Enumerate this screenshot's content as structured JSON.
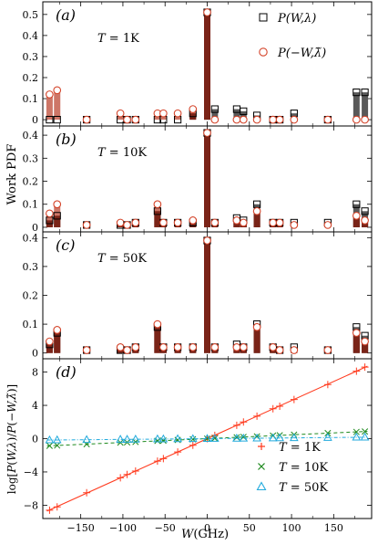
{
  "figure": {
    "ylabel_top": "Work PDF",
    "ylabel_d": "log[P(W,λ)/P(−W,λ̃)]",
    "xlabel": "W(GHz)"
  },
  "chart_data": [
    {
      "type": "bar",
      "panel": "(a)",
      "annotation": "T = 1K",
      "legend": {
        "placement": "top-right",
        "entries": [
          "P(W,λ)",
          "P(−W,λ̃)"
        ]
      },
      "xlim": [
        -195,
        195
      ],
      "ylim": [
        -0.03,
        0.56
      ],
      "yticks": [
        0,
        0.1,
        0.2,
        0.3,
        0.4,
        0.5
      ],
      "x": [
        -187,
        -178,
        -143,
        -103,
        -95,
        -85,
        -59,
        -52,
        -35,
        -17,
        0,
        9,
        35,
        43,
        59,
        78,
        86,
        103,
        143,
        177,
        187
      ],
      "P_forward": [
        0.0,
        0.0,
        0.0,
        0.0,
        0.0,
        0.0,
        0.0,
        0.0,
        0.0,
        0.03,
        0.51,
        0.05,
        0.05,
        0.04,
        0.02,
        0.0,
        0.0,
        0.03,
        0.0,
        0.13,
        0.13
      ],
      "P_reverse": [
        0.12,
        0.14,
        0.0,
        0.03,
        0.0,
        0.0,
        0.03,
        0.03,
        0.03,
        0.05,
        0.51,
        0.0,
        0.0,
        0.0,
        0.0,
        0.0,
        0.0,
        0.0,
        0.0,
        0.0,
        0.0
      ]
    },
    {
      "type": "bar",
      "panel": "(b)",
      "annotation": "T = 10K",
      "xlim": [
        -195,
        195
      ],
      "ylim": [
        -0.02,
        0.44
      ],
      "yticks": [
        0,
        0.1,
        0.2,
        0.3,
        0.4
      ],
      "x": [
        -187,
        -178,
        -143,
        -103,
        -95,
        -85,
        -59,
        -52,
        -35,
        -17,
        0,
        9,
        35,
        43,
        59,
        78,
        86,
        103,
        143,
        177,
        187
      ],
      "P_forward": [
        0.03,
        0.05,
        0.01,
        0.01,
        0.01,
        0.02,
        0.07,
        0.02,
        0.02,
        0.02,
        0.41,
        0.02,
        0.04,
        0.03,
        0.1,
        0.02,
        0.02,
        0.02,
        0.02,
        0.1,
        0.07
      ],
      "P_reverse": [
        0.06,
        0.1,
        0.01,
        0.02,
        0.01,
        0.02,
        0.1,
        0.02,
        0.02,
        0.03,
        0.41,
        0.02,
        0.03,
        0.02,
        0.07,
        0.02,
        0.02,
        0.01,
        0.01,
        0.05,
        0.03
      ]
    },
    {
      "type": "bar",
      "panel": "(c)",
      "annotation": "T = 50K",
      "xlim": [
        -195,
        195
      ],
      "ylim": [
        -0.02,
        0.42
      ],
      "yticks": [
        0,
        0.1,
        0.2,
        0.3,
        0.4
      ],
      "x": [
        -187,
        -178,
        -143,
        -103,
        -95,
        -85,
        -59,
        -52,
        -35,
        -17,
        0,
        9,
        35,
        43,
        59,
        78,
        86,
        103,
        143,
        177,
        187
      ],
      "P_forward": [
        0.03,
        0.07,
        0.01,
        0.01,
        0.01,
        0.02,
        0.09,
        0.02,
        0.02,
        0.02,
        0.39,
        0.02,
        0.03,
        0.02,
        0.1,
        0.02,
        0.01,
        0.02,
        0.01,
        0.09,
        0.06
      ],
      "P_reverse": [
        0.04,
        0.08,
        0.01,
        0.02,
        0.01,
        0.02,
        0.1,
        0.02,
        0.02,
        0.02,
        0.39,
        0.02,
        0.02,
        0.02,
        0.09,
        0.02,
        0.01,
        0.01,
        0.01,
        0.07,
        0.04
      ]
    },
    {
      "type": "line",
      "panel": "(d)",
      "xlabel": "W(GHz)",
      "xlim": [
        -195,
        195
      ],
      "ylim": [
        -9.6,
        9.6
      ],
      "xticks": [
        -150,
        -100,
        -50,
        0,
        50,
        100,
        150
      ],
      "yticks": [
        -8,
        -4,
        0,
        4,
        8
      ],
      "legend": {
        "placement": "bottom-right"
      },
      "x": [
        -187,
        -178,
        -143,
        -103,
        -95,
        -85,
        -59,
        -52,
        -35,
        -17,
        0,
        9,
        35,
        43,
        59,
        78,
        86,
        103,
        143,
        177,
        187
      ],
      "series": [
        {
          "name": "T = 1K",
          "marker": "plus",
          "color": "#ff3b1f",
          "slope": 0.0458,
          "values": [
            -8.6,
            -8.2,
            -6.5,
            -4.7,
            -4.3,
            -3.9,
            -2.7,
            -2.4,
            -1.6,
            -0.8,
            0.0,
            0.4,
            1.6,
            2.0,
            2.7,
            3.6,
            3.9,
            4.7,
            6.5,
            8.1,
            8.6
          ]
        },
        {
          "name": "T = 10K",
          "marker": "cross",
          "color": "#1e8a1e",
          "slope": 0.0046,
          "values": [
            -0.86,
            -0.82,
            -0.66,
            -0.47,
            -0.44,
            -0.39,
            -0.27,
            -0.24,
            -0.16,
            -0.08,
            0.0,
            0.04,
            0.16,
            0.2,
            0.27,
            0.36,
            0.4,
            0.47,
            0.66,
            0.81,
            0.86
          ]
        },
        {
          "name": "T = 50K",
          "marker": "triangle",
          "color": "#22aadd",
          "slope": 0.0009,
          "values": [
            -0.17,
            -0.16,
            -0.13,
            -0.09,
            -0.09,
            -0.08,
            -0.05,
            -0.05,
            -0.03,
            -0.02,
            0.0,
            0.01,
            0.03,
            0.04,
            0.05,
            0.07,
            0.08,
            0.09,
            0.13,
            0.16,
            0.17
          ]
        }
      ]
    }
  ]
}
